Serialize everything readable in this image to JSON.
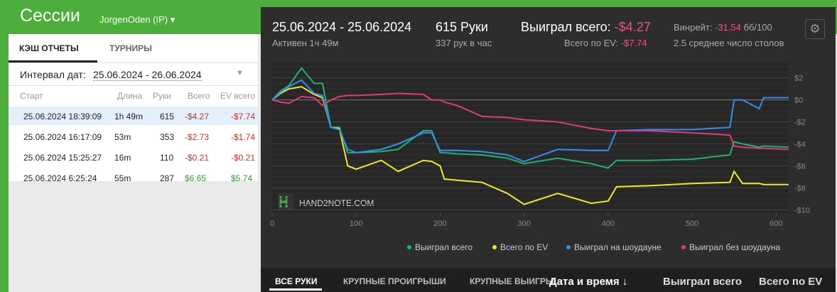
{
  "header": {
    "title": "Сессии",
    "player": "JorgenOden (IP)"
  },
  "tabs": [
    "КЭШ ОТЧЕТЫ",
    "ТУРНИРЫ"
  ],
  "filter": {
    "label": "Интервал дат:",
    "value": "25.06.2024 - 26.06.2024"
  },
  "table": {
    "columns": [
      "Старт",
      "Длина",
      "Руки",
      "Всего",
      "EV всего"
    ],
    "rows": [
      [
        "25.06.2024 18:39:09",
        "1h 49m",
        "615",
        "-$4.27",
        "-$7.74"
      ],
      [
        "25.06.2024 16:17:09",
        "53m",
        "353",
        "-$2.73",
        "-$1.74"
      ],
      [
        "25.06.2024 15:25:27",
        "16m",
        "110",
        "-$0.21",
        "-$0.21"
      ],
      [
        "25.06.2024 6:25:24",
        "55m",
        "287",
        "$6.65",
        "$5.74"
      ]
    ]
  },
  "session": {
    "dates": "25.06.2024 - 25.06.2024",
    "active": "Активен 1ч 49м",
    "hands": "615 Руки",
    "hands_per_hour": "337 рук в час",
    "won_label": "Выиграл всего:",
    "won_value": "-$4.27",
    "ev_label": "Всего по EV:",
    "ev_value": "-$7.74",
    "winrate_label": "Винрейт:",
    "winrate_value": "-31.54",
    "winrate_unit": "бб/100",
    "tables": "2.5 среднее число столов"
  },
  "watermark": "HAND2NOTE.COM",
  "chart_data": {
    "type": "line",
    "grid": true,
    "x": [
      0,
      10,
      20,
      35,
      50,
      60,
      70,
      80,
      90,
      100,
      130,
      150,
      180,
      190,
      200,
      205,
      220,
      250,
      280,
      300,
      340,
      380,
      400,
      410,
      450,
      500,
      545,
      550,
      560,
      580,
      585,
      615
    ],
    "series": [
      {
        "name": "Выиграл всего",
        "color": "#1fb36b",
        "values": [
          0,
          0.8,
          1.3,
          2.9,
          1.5,
          1.5,
          -2.5,
          -2.5,
          -4.8,
          -4.8,
          -4.7,
          -4.5,
          -2.8,
          -2.8,
          -4.8,
          -4.8,
          -4.9,
          -5.0,
          -5.3,
          -5.8,
          -5.3,
          -5.8,
          -6.2,
          -5.5,
          -5.5,
          -5.4,
          -5.0,
          -3.8,
          -4.0,
          -4.3,
          -4.2,
          -4.3
        ]
      },
      {
        "name": "Всего по EV",
        "color": "#f2e81e",
        "values": [
          0,
          0.6,
          1.0,
          1.2,
          0.5,
          0.2,
          -2.5,
          -2.6,
          -6.0,
          -6.3,
          -5.5,
          -6.5,
          -5.5,
          -5.6,
          -6.0,
          -7.2,
          -7.3,
          -7.5,
          -8.5,
          -9.5,
          -8.5,
          -9.4,
          -9.2,
          -7.9,
          -7.8,
          -7.6,
          -7.5,
          -6.5,
          -7.6,
          -7.6,
          -7.7,
          -7.7
        ]
      },
      {
        "name": "Выиграл на шоудауне",
        "color": "#2f8ff0",
        "values": [
          0,
          0.7,
          1.2,
          1.8,
          0.6,
          0.4,
          -2.5,
          -2.7,
          -4.5,
          -4.8,
          -4.5,
          -4.0,
          -3.0,
          -3.0,
          -4.6,
          -4.6,
          -4.6,
          -4.7,
          -5.0,
          -5.6,
          -4.5,
          -4.6,
          -4.6,
          -2.8,
          -2.7,
          -2.7,
          -2.5,
          0.0,
          0.0,
          -0.8,
          0.2,
          0.2
        ]
      },
      {
        "name": "Выиграл без шоудауна",
        "color": "#e23a78",
        "values": [
          0,
          -0.2,
          -0.3,
          0.3,
          0.2,
          -0.5,
          0.0,
          0.3,
          0.4,
          0.4,
          0.5,
          0.6,
          0.5,
          0.0,
          0.0,
          -0.2,
          -0.5,
          -1.5,
          -1.6,
          -1.8,
          -2.0,
          -2.6,
          -2.8,
          -2.8,
          -2.8,
          -3.0,
          -3.2,
          -4.2,
          -4.3,
          -4.4,
          -4.4,
          -4.5
        ]
      }
    ],
    "xlim": [
      0,
      615
    ],
    "xticks": [
      0,
      100,
      200,
      300,
      400,
      500,
      600
    ],
    "ylim": [
      -10.3,
      3.4
    ],
    "yticks": [
      {
        "value": 2,
        "label": "$2"
      },
      {
        "value": 0,
        "label": "$0"
      },
      {
        "value": -2,
        "label": "-$2"
      },
      {
        "value": -4,
        "label": "-$4"
      },
      {
        "value": -6,
        "label": "-$6"
      },
      {
        "value": -8,
        "label": "-$8"
      },
      {
        "value": -10,
        "label": "-$10"
      }
    ]
  },
  "bottom_tabs": [
    "ВСЕ РУКИ",
    "КРУПНЫЕ ПРОИГРЫШИ",
    "КРУПНЫЕ ВЫИГРЫ"
  ],
  "sort_columns": [
    "Дата и время ↓",
    "Выиграл всего",
    "Всего по EV"
  ]
}
